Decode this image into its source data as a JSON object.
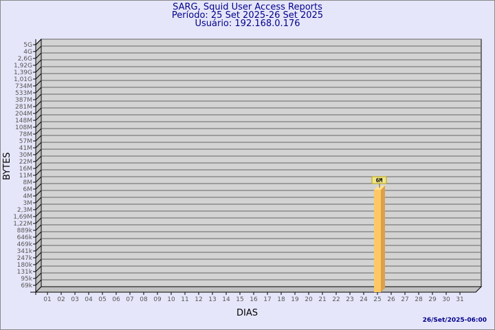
{
  "header": {
    "title": "SARG, Squid User Access Reports",
    "period": "Período: 25 Set 2025-26 Set 2025",
    "user": "Usuário: 192.168.0.176"
  },
  "footer": {
    "timestamp": "26/Set/2025-06:00"
  },
  "colors": {
    "background": "#e6e6fa",
    "plot": "#d3d3d3",
    "bar": "#ffc864",
    "bar_side": "#dca04a",
    "title": "#00008b"
  },
  "chart_data": {
    "type": "bar",
    "xlabel": "DIAS",
    "ylabel": "BYTES",
    "yscale": "log",
    "grid": true,
    "categories": [
      "01",
      "02",
      "03",
      "04",
      "05",
      "06",
      "07",
      "08",
      "09",
      "10",
      "11",
      "12",
      "13",
      "14",
      "15",
      "16",
      "17",
      "18",
      "19",
      "20",
      "21",
      "22",
      "23",
      "24",
      "25",
      "26",
      "27",
      "28",
      "29",
      "30",
      "31"
    ],
    "y_tick_labels": [
      "5G",
      "4G",
      "2,6G",
      "1,92G",
      "1,39G",
      "1,01G",
      "734M",
      "533M",
      "387M",
      "281M",
      "204M",
      "148M",
      "108M",
      "78M",
      "57M",
      "41M",
      "30M",
      "22M",
      "16M",
      "11M",
      "8M",
      "6M",
      "4M",
      "3M",
      "2,3M",
      "1,69M",
      "1,22M",
      "889k",
      "646k",
      "469k",
      "341k",
      "247k",
      "180k",
      "131k",
      "95k",
      "69k"
    ],
    "y_tick_values": [
      5000000000.0,
      4000000000.0,
      2600000000.0,
      1920000000.0,
      1390000000.0,
      1010000000.0,
      734000000.0,
      533000000.0,
      387000000.0,
      281000000.0,
      204000000.0,
      148000000.0,
      108000000.0,
      78000000.0,
      57000000.0,
      41000000.0,
      30000000.0,
      22000000.0,
      16000000.0,
      11000000.0,
      8000000.0,
      6000000.0,
      4000000.0,
      3000000.0,
      2300000.0,
      1690000.0,
      1220000.0,
      889000.0,
      646000.0,
      469000.0,
      341000.0,
      247000.0,
      180000.0,
      131000.0,
      95000.0,
      69000.0
    ],
    "bars": [
      {
        "category": "25",
        "value": 6000000,
        "label": "6M"
      }
    ]
  }
}
